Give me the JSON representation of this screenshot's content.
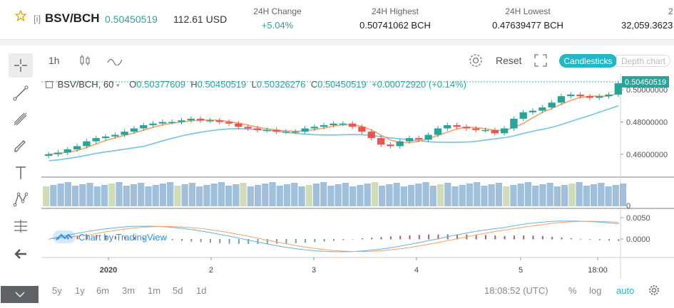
{
  "ticker": {
    "prefix": "[i]",
    "pair": "BSV/BCH",
    "price": "0.50450519",
    "usd": "112.61 USD",
    "stats": [
      {
        "label": "24H Change",
        "value": "+5.04%",
        "green": true
      },
      {
        "label": "24H Highest",
        "value": "0.50741062 BCH",
        "green": false
      },
      {
        "label": "24H Lowest",
        "value": "0.47639477 BCH",
        "green": false
      },
      {
        "label": "2",
        "value": "32,059.3623",
        "green": false
      }
    ]
  },
  "topbar": {
    "interval": "1h",
    "reset": "Reset",
    "candlesticks": "Candlesticks",
    "depth": "Depth chart"
  },
  "legend": {
    "symbol": "BSV/BCH, 60",
    "open_key": "O",
    "open": "0.50377609",
    "high_key": "H",
    "high": "0.50450519",
    "low_key": "L",
    "low": "0.50326276",
    "close_key": "C",
    "close": "0.50450519",
    "change": "+0.00072920 (+0.14%)"
  },
  "chart_data": {
    "type": "candlestick",
    "last_price_label": "0.50450519",
    "price_ticks": [
      "0.50000000",
      "0.48000000",
      "0.46000000"
    ],
    "volume_ticks": [
      "0"
    ],
    "macd_ticks": [
      "0.0050",
      "0.0000"
    ],
    "x_ticks": [
      "2020",
      "2",
      "3",
      "4",
      "5",
      "18:00"
    ],
    "close_series": [
      0.46,
      0.461,
      0.463,
      0.465,
      0.468,
      0.47,
      0.471,
      0.472,
      0.474,
      0.476,
      0.478,
      0.479,
      0.48,
      0.48,
      0.481,
      0.482,
      0.481,
      0.481,
      0.48,
      0.479,
      0.477,
      0.476,
      0.475,
      0.475,
      0.474,
      0.474,
      0.474,
      0.476,
      0.477,
      0.478,
      0.479,
      0.479,
      0.477,
      0.474,
      0.47,
      0.466,
      0.465,
      0.468,
      0.47,
      0.469,
      0.472,
      0.476,
      0.478,
      0.477,
      0.476,
      0.475,
      0.475,
      0.473,
      0.476,
      0.482,
      0.486,
      0.487,
      0.489,
      0.492,
      0.496,
      0.497,
      0.496,
      0.495,
      0.496,
      0.497,
      0.504
    ]
  },
  "watermark": "Chart by TradingView",
  "bottombar": {
    "ranges": [
      "5y",
      "1y",
      "6m",
      "3m",
      "1m",
      "5d",
      "1d"
    ],
    "time": "18:08:52 (UTC)",
    "percent": "%",
    "log": "log",
    "auto": "auto"
  }
}
